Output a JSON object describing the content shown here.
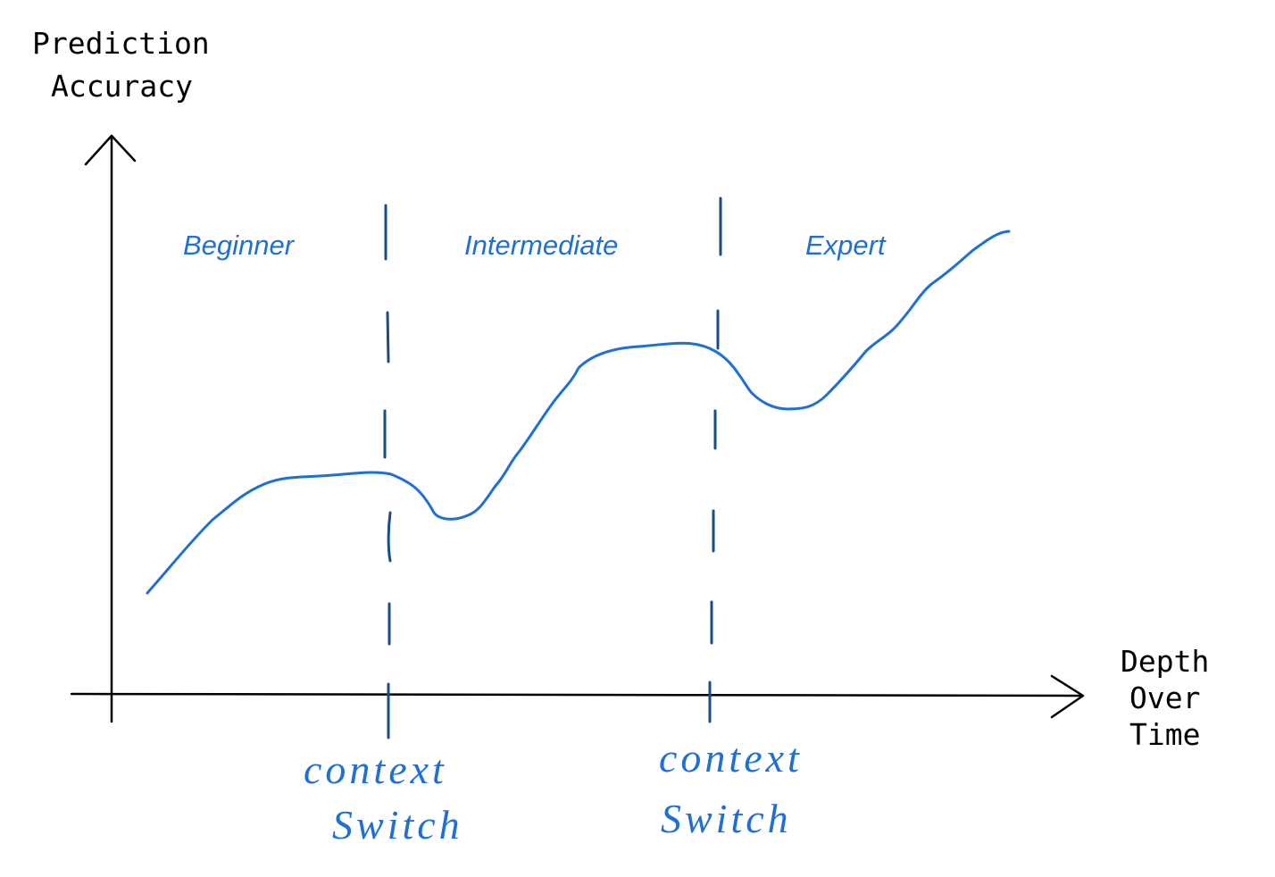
{
  "y_axis_label": [
    "Prediction",
    "Accuracy"
  ],
  "x_axis_label": [
    "Depth",
    "Over",
    "Time"
  ],
  "stages": [
    "Beginner",
    "Intermediate",
    "Expert"
  ],
  "boundaries": [
    {
      "label_lines": [
        "context",
        "Switch"
      ]
    },
    {
      "label_lines": [
        "context",
        "Switch"
      ]
    }
  ],
  "colors": {
    "curve": "#1f6fd8",
    "divider": "#174e8a",
    "label": "#1f6fd8",
    "axis": "#000000"
  }
}
